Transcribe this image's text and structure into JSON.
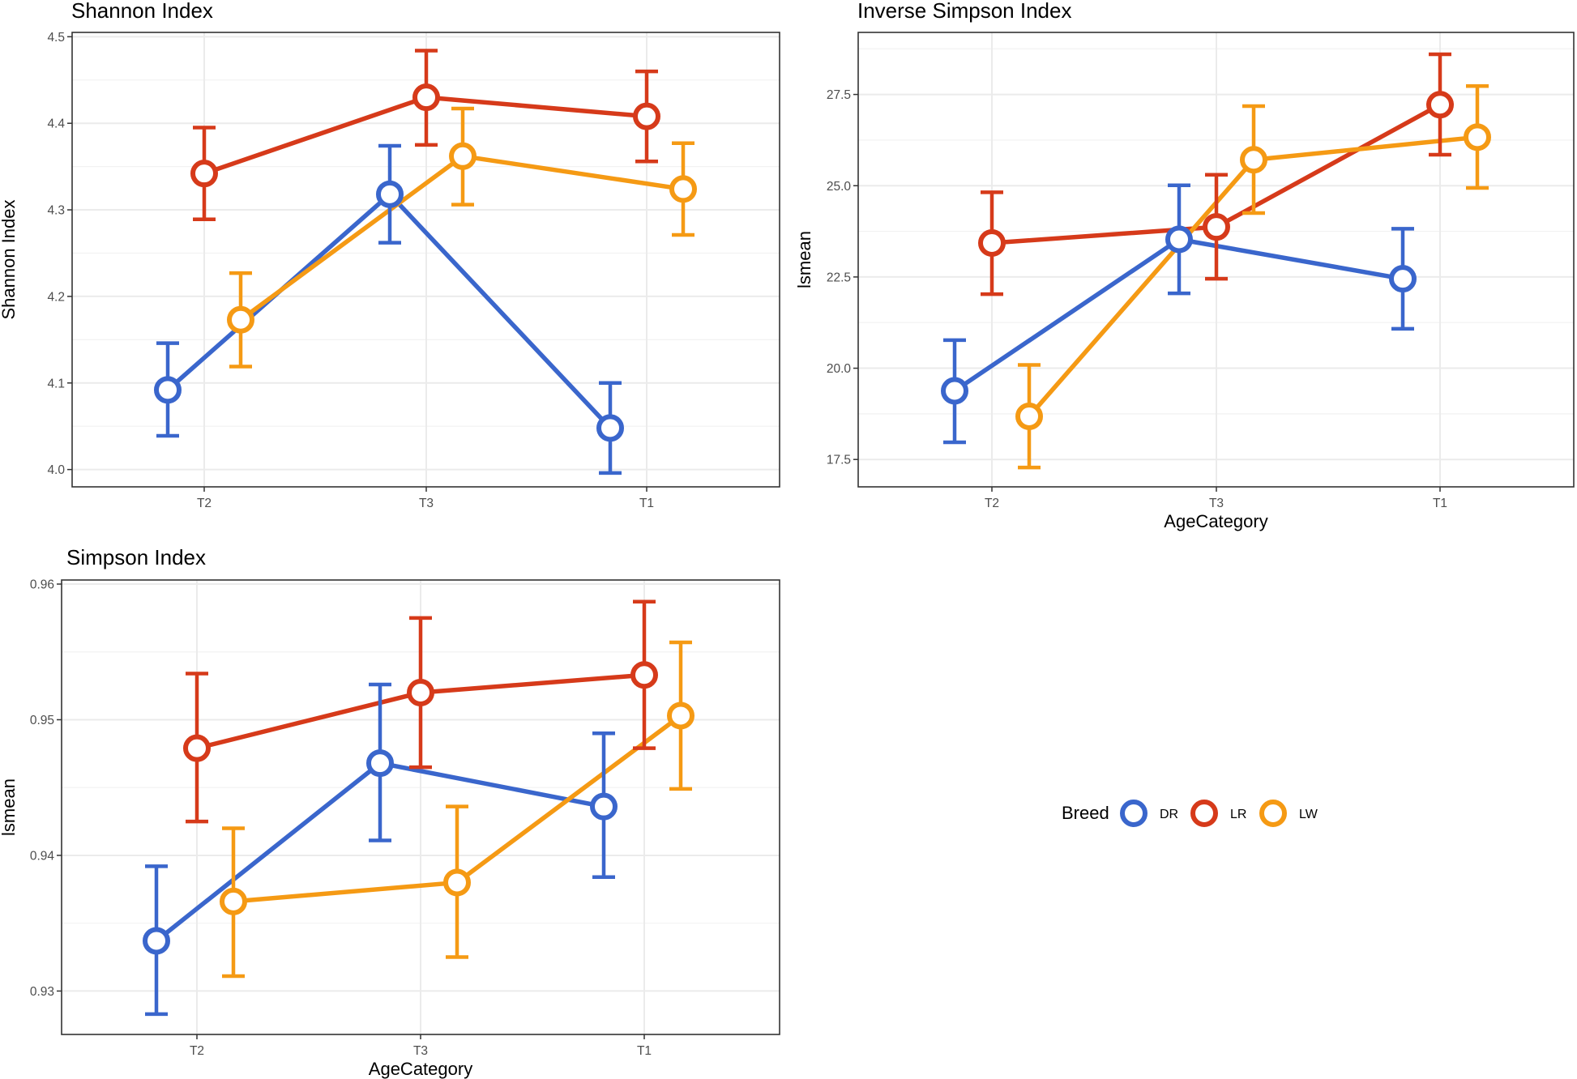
{
  "chart_data": [
    {
      "type": "line",
      "title": "Shannon Index",
      "xlabel": "",
      "ylabel": "Shannon Index",
      "categories": [
        "T2",
        "T3",
        "T1"
      ],
      "ylim": [
        3.98,
        4.505
      ],
      "yticks": [
        "4.0",
        "4.1",
        "4.2",
        "4.3",
        "4.4",
        "4.5"
      ],
      "ytick_values": [
        4.0,
        4.1,
        4.2,
        4.3,
        4.4,
        4.5
      ],
      "series": [
        {
          "name": "DR",
          "values": [
            4.092,
            4.318,
            4.048
          ],
          "lower": [
            4.039,
            4.262,
            3.996
          ],
          "upper": [
            4.146,
            4.374,
            4.1
          ]
        },
        {
          "name": "LR",
          "values": [
            4.342,
            4.43,
            4.408
          ],
          "lower": [
            4.289,
            4.375,
            4.356
          ],
          "upper": [
            4.395,
            4.484,
            4.46
          ]
        },
        {
          "name": "LW",
          "values": [
            4.173,
            4.362,
            4.324
          ],
          "lower": [
            4.119,
            4.306,
            4.271
          ],
          "upper": [
            4.227,
            4.417,
            4.377
          ]
        }
      ]
    },
    {
      "type": "line",
      "title": "Inverse Simpson Index",
      "xlabel": "AgeCategory",
      "ylabel": "lsmean",
      "categories": [
        "T2",
        "T3",
        "T1"
      ],
      "ylim": [
        16.75,
        29.2
      ],
      "yticks": [
        "17.5",
        "20.0",
        "22.5",
        "25.0",
        "27.5"
      ],
      "ytick_values": [
        17.5,
        20.0,
        22.5,
        25.0,
        27.5
      ],
      "series": [
        {
          "name": "DR",
          "values": [
            19.38,
            23.53,
            22.45
          ],
          "lower": [
            17.97,
            22.05,
            21.08
          ],
          "upper": [
            20.77,
            25.01,
            23.82
          ]
        },
        {
          "name": "LR",
          "values": [
            23.43,
            23.87,
            27.22
          ],
          "lower": [
            22.03,
            22.45,
            25.85
          ],
          "upper": [
            24.82,
            25.3,
            28.6
          ]
        },
        {
          "name": "LW",
          "values": [
            18.68,
            25.71,
            26.33
          ],
          "lower": [
            17.28,
            24.25,
            24.94
          ],
          "upper": [
            20.09,
            27.18,
            27.73
          ]
        }
      ]
    },
    {
      "type": "line",
      "title": "Simpson Index",
      "xlabel": "AgeCategory",
      "ylabel": "lsmean",
      "categories": [
        "T2",
        "T3",
        "T1"
      ],
      "ylim": [
        0.9268,
        0.9603
      ],
      "yticks": [
        "0.93",
        "0.94",
        "0.95",
        "0.96"
      ],
      "ytick_values": [
        0.93,
        0.94,
        0.95,
        0.96
      ],
      "series": [
        {
          "name": "DR",
          "values": [
            0.9337,
            0.9468,
            0.9436
          ],
          "lower": [
            0.9283,
            0.9411,
            0.9384
          ],
          "upper": [
            0.9392,
            0.9526,
            0.949
          ]
        },
        {
          "name": "LR",
          "values": [
            0.9479,
            0.952,
            0.9533
          ],
          "lower": [
            0.9425,
            0.9465,
            0.9479
          ],
          "upper": [
            0.9534,
            0.9575,
            0.9587
          ]
        },
        {
          "name": "LW",
          "values": [
            0.9366,
            0.938,
            0.9503
          ],
          "lower": [
            0.9311,
            0.9325,
            0.9449
          ],
          "upper": [
            0.942,
            0.9436,
            0.9557
          ]
        }
      ]
    }
  ],
  "legend": {
    "title": "Breed",
    "items": [
      "DR",
      "LR",
      "LW"
    ],
    "position": "right"
  },
  "colors": {
    "DR": "#3a66cc",
    "LR": "#d63a1a",
    "LW": "#f59a14"
  }
}
